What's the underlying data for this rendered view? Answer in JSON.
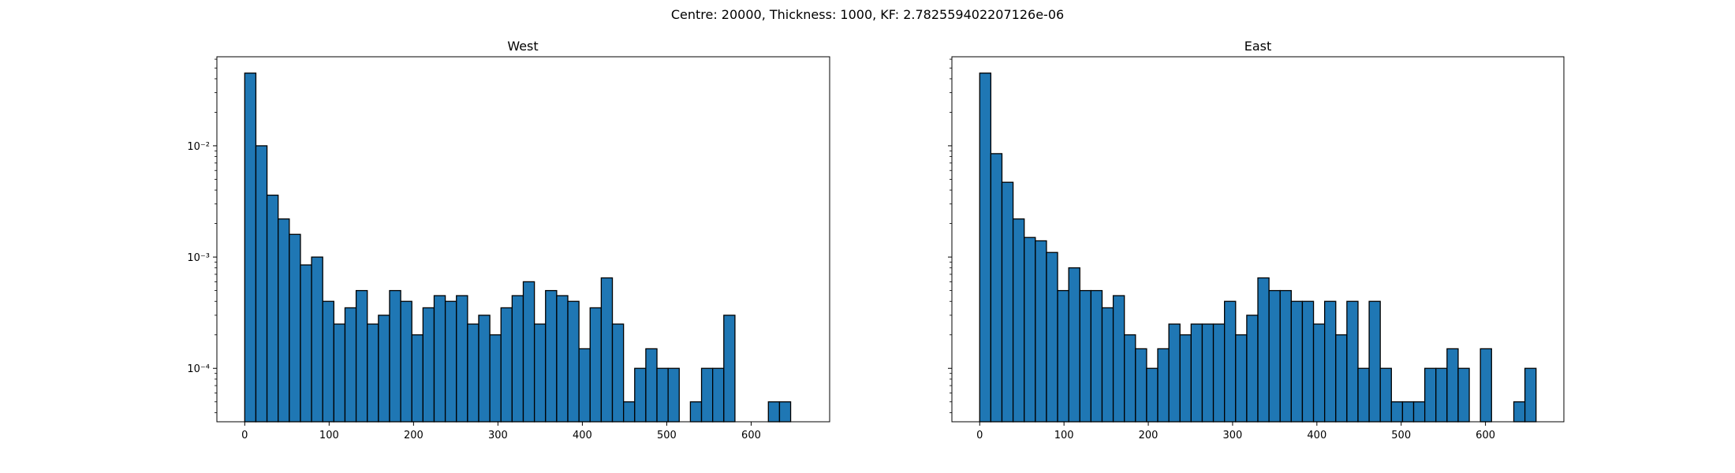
{
  "suptitle": "Centre: 20000, Thickness: 1000, KF: 2.782559402207126e-06",
  "chart_data": [
    {
      "type": "bar",
      "title": "West",
      "xlabel": "",
      "ylabel": "",
      "yscale": "log",
      "bar_color": "#1f77b4",
      "edge_color": "#000000",
      "bin_width": 13.2,
      "xlim": [
        -33,
        693
      ],
      "ylim_log10": [
        -4.48,
        -1.2
      ],
      "xticks": [
        0,
        100,
        200,
        300,
        400,
        500,
        600
      ],
      "yticks": [
        {
          "exp": -4,
          "label": "10⁻⁴"
        },
        {
          "exp": -3,
          "label": "10⁻³"
        },
        {
          "exp": -2,
          "label": "10⁻²"
        }
      ],
      "bin_starts": [
        0,
        13.2,
        26.4,
        39.6,
        52.8,
        66.0,
        79.2,
        92.4,
        105.6,
        118.8,
        132.0,
        145.2,
        158.4,
        171.6,
        184.8,
        198.0,
        211.2,
        224.4,
        237.6,
        250.8,
        264.0,
        277.2,
        290.4,
        303.6,
        316.8,
        330.0,
        343.2,
        356.4,
        369.6,
        382.8,
        396.0,
        409.2,
        422.4,
        435.6,
        448.8,
        462.0,
        475.2,
        488.4,
        501.6,
        514.8,
        528.0,
        541.2,
        554.4,
        567.6,
        580.8,
        594.0,
        607.2,
        620.4,
        633.6
      ],
      "values": [
        0.045,
        0.01,
        0.0036,
        0.0022,
        0.0016,
        0.00085,
        0.001,
        0.0004,
        0.00025,
        0.00035,
        0.0005,
        0.00025,
        0.0003,
        0.0005,
        0.0004,
        0.0002,
        0.00035,
        0.00045,
        0.0004,
        0.00045,
        0.00025,
        0.0003,
        0.0002,
        0.00035,
        0.00045,
        0.0006,
        0.00025,
        0.0005,
        0.00045,
        0.0004,
        0.00015,
        0.00035,
        0.00065,
        0.00025,
        5e-05,
        0.0001,
        0.00015,
        0.0001,
        0.0001,
        0,
        5e-05,
        0.0001,
        0.0001,
        0.0003,
        0,
        0,
        0,
        5e-05,
        5e-05
      ]
    },
    {
      "type": "bar",
      "title": "East",
      "xlabel": "",
      "ylabel": "",
      "yscale": "log",
      "bar_color": "#1f77b4",
      "edge_color": "#000000",
      "bin_width": 13.2,
      "xlim": [
        -33,
        693
      ],
      "ylim_log10": [
        -4.48,
        -1.2
      ],
      "xticks": [
        0,
        100,
        200,
        300,
        400,
        500,
        600
      ],
      "yticks": [
        {
          "exp": -4,
          "label": ""
        },
        {
          "exp": -3,
          "label": ""
        },
        {
          "exp": -2,
          "label": ""
        }
      ],
      "bin_starts": [
        0,
        13.2,
        26.4,
        39.6,
        52.8,
        66.0,
        79.2,
        92.4,
        105.6,
        118.8,
        132.0,
        145.2,
        158.4,
        171.6,
        184.8,
        198.0,
        211.2,
        224.4,
        237.6,
        250.8,
        264.0,
        277.2,
        290.4,
        303.6,
        316.8,
        330.0,
        343.2,
        356.4,
        369.6,
        382.8,
        396.0,
        409.2,
        422.4,
        435.6,
        448.8,
        462.0,
        475.2,
        488.4,
        501.6,
        514.8,
        528.0,
        541.2,
        554.4,
        567.6,
        580.8,
        594.0,
        607.2,
        620.4,
        633.6,
        646.8
      ],
      "values": [
        0.045,
        0.0085,
        0.0047,
        0.0022,
        0.0015,
        0.0014,
        0.0011,
        0.0005,
        0.0008,
        0.0005,
        0.0005,
        0.00035,
        0.00045,
        0.0002,
        0.00015,
        0.0001,
        0.00015,
        0.00025,
        0.0002,
        0.00025,
        0.00025,
        0.00025,
        0.0004,
        0.0002,
        0.0003,
        0.00065,
        0.0005,
        0.0005,
        0.0004,
        0.0004,
        0.00025,
        0.0004,
        0.0002,
        0.0004,
        0.0001,
        0.0004,
        0.0001,
        5e-05,
        5e-05,
        5e-05,
        0.0001,
        0.0001,
        0.00015,
        0.0001,
        0,
        0.00015,
        0,
        0,
        5e-05,
        0.0001
      ]
    }
  ]
}
